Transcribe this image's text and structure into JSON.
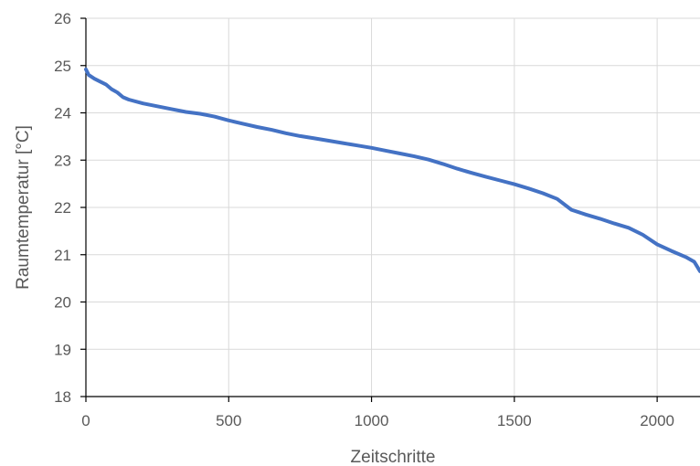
{
  "chart_data": {
    "type": "line",
    "title": "",
    "xlabel": "Zeitschritte",
    "ylabel": "Raumtemperatur [°C]",
    "xlim": [
      0,
      2150
    ],
    "ylim": [
      18,
      26
    ],
    "xticks": [
      0,
      500,
      1000,
      1500,
      2000
    ],
    "yticks": [
      18,
      19,
      20,
      21,
      22,
      23,
      24,
      25,
      26
    ],
    "xtick_labels": [
      "0",
      "500",
      "1000",
      "1500",
      "2000"
    ],
    "ytick_labels": [
      "18",
      "19",
      "20",
      "21",
      "22",
      "23",
      "24",
      "25",
      "26"
    ],
    "grid": true,
    "legend": "none",
    "series": [
      {
        "color": "#4472c4",
        "x": [
          0,
          10,
          30,
          50,
          70,
          90,
          110,
          130,
          150,
          200,
          250,
          300,
          350,
          400,
          450,
          500,
          550,
          600,
          650,
          700,
          750,
          800,
          850,
          900,
          950,
          1000,
          1050,
          1100,
          1150,
          1200,
          1250,
          1300,
          1350,
          1400,
          1450,
          1500,
          1550,
          1600,
          1650,
          1700,
          1750,
          1800,
          1850,
          1900,
          1950,
          2000,
          2050,
          2100,
          2130,
          2150
        ],
        "y": [
          24.92,
          24.8,
          24.72,
          24.66,
          24.6,
          24.5,
          24.43,
          24.33,
          24.28,
          24.2,
          24.14,
          24.08,
          24.02,
          23.98,
          23.92,
          23.84,
          23.77,
          23.7,
          23.64,
          23.57,
          23.51,
          23.46,
          23.41,
          23.36,
          23.31,
          23.26,
          23.2,
          23.14,
          23.08,
          23.01,
          22.92,
          22.82,
          22.73,
          22.65,
          22.57,
          22.49,
          22.4,
          22.3,
          22.18,
          21.95,
          21.85,
          21.76,
          21.66,
          21.57,
          21.42,
          21.22,
          21.08,
          20.95,
          20.85,
          20.65
        ]
      }
    ]
  }
}
